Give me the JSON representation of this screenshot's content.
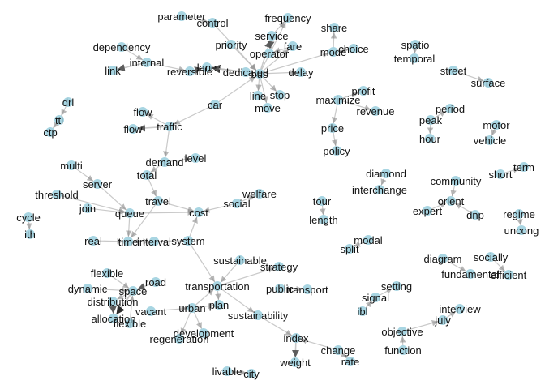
{
  "graph": {
    "node_color": "#a8d5e2",
    "edge_color": "#bbbbbb",
    "arrow_color": "#888888",
    "nodes": [
      {
        "id": "parameter",
        "label": "parameter"
      },
      {
        "id": "control",
        "label": "control"
      },
      {
        "id": "frequency",
        "label": "frequency"
      },
      {
        "id": "service",
        "label": "service"
      },
      {
        "id": "share",
        "label": "share"
      },
      {
        "id": "priority",
        "label": "priority"
      },
      {
        "id": "fare",
        "label": "fare"
      },
      {
        "id": "operator",
        "label": "operator"
      },
      {
        "id": "mode",
        "label": "mode"
      },
      {
        "id": "choice",
        "label": "choice"
      },
      {
        "id": "spatio",
        "label": "spatio"
      },
      {
        "id": "dependency",
        "label": "dependency"
      },
      {
        "id": "internal",
        "label": "internal"
      },
      {
        "id": "temporal",
        "label": "temporal"
      },
      {
        "id": "lane",
        "label": "lane"
      },
      {
        "id": "dedicated",
        "label": "dedicated"
      },
      {
        "id": "bus",
        "label": "bus"
      },
      {
        "id": "delay",
        "label": "delay"
      },
      {
        "id": "link",
        "label": "link"
      },
      {
        "id": "reversible",
        "label": "reversible"
      },
      {
        "id": "street",
        "label": "street"
      },
      {
        "id": "surface",
        "label": "surface"
      },
      {
        "id": "profit",
        "label": "profit"
      },
      {
        "id": "line",
        "label": "line"
      },
      {
        "id": "stop",
        "label": "stop"
      },
      {
        "id": "maximize",
        "label": "maximize"
      },
      {
        "id": "drl",
        "label": "drl"
      },
      {
        "id": "car",
        "label": "car"
      },
      {
        "id": "move",
        "label": "move"
      },
      {
        "id": "revenue",
        "label": "revenue"
      },
      {
        "id": "period",
        "label": "period"
      },
      {
        "id": "flow1",
        "label": "flow"
      },
      {
        "id": "tti",
        "label": "tti"
      },
      {
        "id": "peak",
        "label": "peak"
      },
      {
        "id": "motor",
        "label": "motor"
      },
      {
        "id": "ctp",
        "label": "ctp"
      },
      {
        "id": "flow2",
        "label": "flow"
      },
      {
        "id": "traffic",
        "label": "traffic"
      },
      {
        "id": "price",
        "label": "price"
      },
      {
        "id": "hour",
        "label": "hour"
      },
      {
        "id": "vehicle",
        "label": "vehicle"
      },
      {
        "id": "policy",
        "label": "policy"
      },
      {
        "id": "level",
        "label": "level"
      },
      {
        "id": "demand",
        "label": "demand"
      },
      {
        "id": "multi",
        "label": "multi"
      },
      {
        "id": "term",
        "label": "term"
      },
      {
        "id": "diamond",
        "label": "diamond"
      },
      {
        "id": "total",
        "label": "total"
      },
      {
        "id": "short",
        "label": "short"
      },
      {
        "id": "community",
        "label": "community"
      },
      {
        "id": "server",
        "label": "server"
      },
      {
        "id": "interchange",
        "label": "interchange"
      },
      {
        "id": "welfare",
        "label": "welfare"
      },
      {
        "id": "threshold",
        "label": "threshold"
      },
      {
        "id": "tour",
        "label": "tour"
      },
      {
        "id": "orient",
        "label": "orient"
      },
      {
        "id": "travel",
        "label": "travel"
      },
      {
        "id": "social",
        "label": "social"
      },
      {
        "id": "join",
        "label": "join"
      },
      {
        "id": "cost",
        "label": "cost"
      },
      {
        "id": "expert",
        "label": "expert"
      },
      {
        "id": "dnp",
        "label": "dnp"
      },
      {
        "id": "regime",
        "label": "regime"
      },
      {
        "id": "queue",
        "label": "queue"
      },
      {
        "id": "cycle",
        "label": "cycle"
      },
      {
        "id": "length",
        "label": "length"
      },
      {
        "id": "ith",
        "label": "ith"
      },
      {
        "id": "uncong",
        "label": "uncong"
      },
      {
        "id": "modal",
        "label": "modal"
      },
      {
        "id": "real",
        "label": "real"
      },
      {
        "id": "time",
        "label": "time"
      },
      {
        "id": "interval",
        "label": "interval"
      },
      {
        "id": "system",
        "label": "system"
      },
      {
        "id": "split",
        "label": "split"
      },
      {
        "id": "diagram",
        "label": "diagram"
      },
      {
        "id": "socially",
        "label": "socially"
      },
      {
        "id": "sustainable",
        "label": "sustainable"
      },
      {
        "id": "strategy",
        "label": "strategy"
      },
      {
        "id": "flexible1",
        "label": "flexible"
      },
      {
        "id": "fundamental",
        "label": "fundamental"
      },
      {
        "id": "efficient",
        "label": "efficient"
      },
      {
        "id": "road",
        "label": "road"
      },
      {
        "id": "transportation",
        "label": "transportation"
      },
      {
        "id": "setting",
        "label": "setting"
      },
      {
        "id": "dynamic",
        "label": "dynamic"
      },
      {
        "id": "space",
        "label": "space"
      },
      {
        "id": "public",
        "label": "public"
      },
      {
        "id": "transport",
        "label": "transport"
      },
      {
        "id": "distribution",
        "label": "distribution"
      },
      {
        "id": "signal",
        "label": "signal"
      },
      {
        "id": "plan",
        "label": "plan"
      },
      {
        "id": "vacant",
        "label": "vacant"
      },
      {
        "id": "urban",
        "label": "urban"
      },
      {
        "id": "ibl",
        "label": "ibl"
      },
      {
        "id": "interview",
        "label": "interview"
      },
      {
        "id": "allocation",
        "label": "allocation"
      },
      {
        "id": "sustainability",
        "label": "sustainability"
      },
      {
        "id": "flexible2",
        "label": "flexible"
      },
      {
        "id": "july",
        "label": "july"
      },
      {
        "id": "development",
        "label": "development"
      },
      {
        "id": "objective",
        "label": "objective"
      },
      {
        "id": "regeneration",
        "label": "regeneration"
      },
      {
        "id": "index",
        "label": "index"
      },
      {
        "id": "change",
        "label": "change"
      },
      {
        "id": "function",
        "label": "function"
      },
      {
        "id": "rate",
        "label": "rate"
      },
      {
        "id": "weight",
        "label": "weight"
      },
      {
        "id": "livable",
        "label": "livable"
      },
      {
        "id": "city",
        "label": "city"
      }
    ],
    "edges": [
      [
        "parameter",
        "control",
        1
      ],
      [
        "control",
        "bus",
        1
      ],
      [
        "priority",
        "bus",
        1
      ],
      [
        "service",
        "frequency",
        1
      ],
      [
        "service",
        "operator",
        2
      ],
      [
        "fare",
        "operator",
        1
      ],
      [
        "bus",
        "service",
        2
      ],
      [
        "bus",
        "frequency",
        1
      ],
      [
        "bus",
        "fare",
        1
      ],
      [
        "bus",
        "mode",
        1
      ],
      [
        "mode",
        "share",
        1
      ],
      [
        "mode",
        "choice",
        1
      ],
      [
        "bus",
        "delay",
        1
      ],
      [
        "bus",
        "stop",
        1
      ],
      [
        "bus",
        "line",
        1
      ],
      [
        "bus",
        "move",
        1
      ],
      [
        "dedicated",
        "lane",
        3
      ],
      [
        "bus",
        "lane",
        2
      ],
      [
        "internal",
        "link",
        2
      ],
      [
        "internal",
        "reversible",
        1
      ],
      [
        "reversible",
        "lane",
        2
      ],
      [
        "dependency",
        "internal",
        1
      ],
      [
        "car",
        "bus",
        1
      ],
      [
        "car",
        "traffic",
        1
      ],
      [
        "spatio",
        "temporal",
        1
      ],
      [
        "street",
        "surface",
        1
      ],
      [
        "maximize",
        "profit",
        1
      ],
      [
        "maximize",
        "revenue",
        1
      ],
      [
        "maximize",
        "price",
        1
      ],
      [
        "price",
        "policy",
        1
      ],
      [
        "drl",
        "tti",
        1
      ],
      [
        "tti",
        "ctp",
        1
      ],
      [
        "peak",
        "period",
        1
      ],
      [
        "peak",
        "hour",
        1
      ],
      [
        "motor",
        "vehicle",
        1
      ],
      [
        "traffic",
        "flow1",
        1
      ],
      [
        "traffic",
        "flow2",
        2
      ],
      [
        "traffic",
        "demand",
        1
      ],
      [
        "demand",
        "level",
        1
      ],
      [
        "demand",
        "total",
        1
      ],
      [
        "total",
        "travel",
        1
      ],
      [
        "travel",
        "cost",
        1
      ],
      [
        "travel",
        "time",
        1
      ],
      [
        "multi",
        "server",
        1
      ],
      [
        "server",
        "queue",
        1
      ],
      [
        "threshold",
        "queue",
        1
      ],
      [
        "join",
        "queue",
        1
      ],
      [
        "queue",
        "time",
        1
      ],
      [
        "queue",
        "cost",
        1
      ],
      [
        "social",
        "welfare",
        1
      ],
      [
        "social",
        "cost",
        1
      ],
      [
        "system",
        "cost",
        1
      ],
      [
        "real",
        "time",
        1
      ],
      [
        "time",
        "interval",
        1
      ],
      [
        "system",
        "time",
        1
      ],
      [
        "system",
        "transportation",
        1
      ],
      [
        "diamond",
        "interchange",
        1
      ],
      [
        "short",
        "term",
        1
      ],
      [
        "community",
        "orient",
        1
      ],
      [
        "expert",
        "orient",
        1
      ],
      [
        "dnp",
        "orient",
        1
      ],
      [
        "regime",
        "uncong",
        1
      ],
      [
        "cycle",
        "ith",
        1
      ],
      [
        "tour",
        "length",
        1
      ],
      [
        "modal",
        "split",
        1
      ],
      [
        "diagram",
        "fundamental",
        1
      ],
      [
        "socially",
        "efficient",
        1
      ],
      [
        "sustainable",
        "transportation",
        1
      ],
      [
        "transportation",
        "strategy",
        1
      ],
      [
        "transportation",
        "plan",
        1
      ],
      [
        "public",
        "transport",
        1
      ],
      [
        "transportation",
        "sustainability",
        1
      ],
      [
        "road",
        "space",
        2
      ],
      [
        "flexible1",
        "space",
        1
      ],
      [
        "dynamic",
        "space",
        1
      ],
      [
        "space",
        "distribution",
        1
      ],
      [
        "space",
        "allocation",
        3
      ],
      [
        "distribution",
        "allocation",
        2
      ],
      [
        "flexible2",
        "space",
        1
      ],
      [
        "vacant",
        "urban",
        1
      ],
      [
        "urban",
        "plan",
        1
      ],
      [
        "urban",
        "regeneration",
        1
      ],
      [
        "urban",
        "development",
        1
      ],
      [
        "urban",
        "transportation",
        1
      ],
      [
        "signal",
        "setting",
        1
      ],
      [
        "ibl",
        "signal",
        1
      ],
      [
        "july",
        "interview",
        1
      ],
      [
        "objective",
        "july",
        1
      ],
      [
        "function",
        "objective",
        1
      ],
      [
        "sustainability",
        "index",
        1
      ],
      [
        "change",
        "index",
        1
      ],
      [
        "change",
        "rate",
        1
      ],
      [
        "index",
        "weight",
        2
      ],
      [
        "livable",
        "city",
        1
      ]
    ]
  }
}
